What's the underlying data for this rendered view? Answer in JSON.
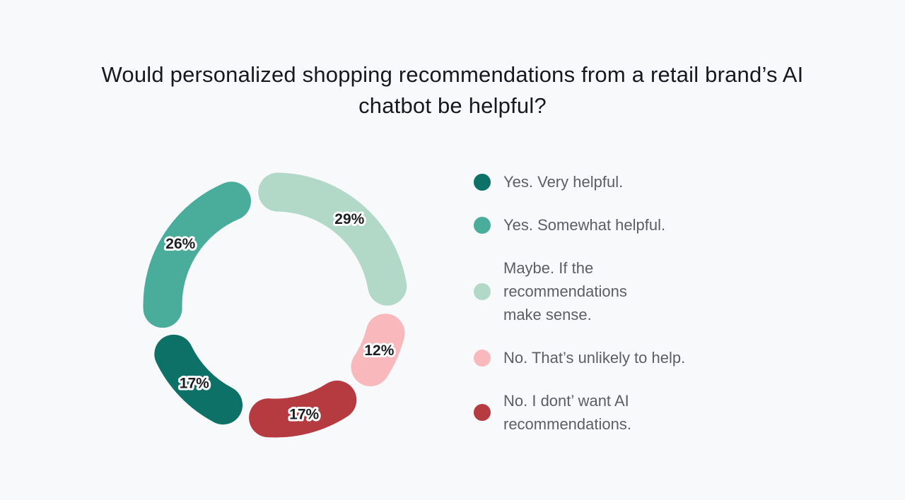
{
  "page": {
    "background": "#f8f9fa"
  },
  "title": "Would personalized shopping recommendations from a retail brand’s AI chatbot be helpful?",
  "chart_data": {
    "type": "donut",
    "title": "Would personalized shopping recommendations from a retail brand’s AI chatbot be helpful?",
    "unit": "%",
    "legend_position": "right",
    "segments": [
      {
        "label": "Yes. Very helpful.",
        "value": 17,
        "color": "#0d7167"
      },
      {
        "label": "Yes. Somewhat helpful.",
        "value": 26,
        "color": "#4aad9b"
      },
      {
        "label": "Maybe. If the\nrecommendations\nmake sense.",
        "value": 29,
        "color": "#b2d9c7"
      },
      {
        "label": "No. That’s unlikely to help.",
        "value": 12,
        "color": "#f9b8bb"
      },
      {
        "label": "No. I dont’ want AI\nrecommendations.",
        "value": 17,
        "color": "#b53b41"
      }
    ],
    "draw_order": [
      2,
      3,
      4,
      0,
      1
    ],
    "start_angle_deg": -11,
    "gap_deg": 24,
    "ring_radius": 160,
    "ring_thickness": 55,
    "value_label_color": "#1c1e21",
    "value_label_halo": "#ffffff"
  }
}
